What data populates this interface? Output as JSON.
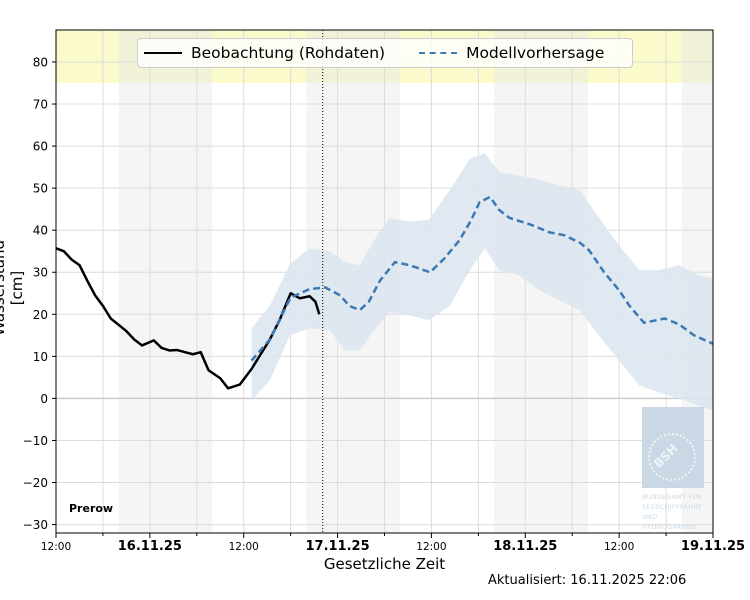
{
  "chart_data": {
    "type": "line",
    "xlabel": "Gesetzliche Zeit",
    "ylabel": "Wasserstand [cm]",
    "xlim": [
      "2025-11-15T12:00",
      "2025-11-19T00:00"
    ],
    "ylim": [
      -32,
      87.6
    ],
    "yticks": [
      -30,
      -20,
      -10,
      0,
      10,
      20,
      30,
      40,
      50,
      60,
      70,
      80
    ],
    "ytick_labels": [
      "−30",
      "−20",
      "−10",
      "0",
      "10",
      "20",
      "30",
      "40",
      "50",
      "60",
      "70",
      "80"
    ],
    "xticks": [
      {
        "t": "2025-11-15T12:00",
        "label": "12:00",
        "bold": false
      },
      {
        "t": "2025-11-16T00:00",
        "label": "16.11.25",
        "bold": true
      },
      {
        "t": "2025-11-16T12:00",
        "label": "12:00",
        "bold": false
      },
      {
        "t": "2025-11-17T00:00",
        "label": "17.11.25",
        "bold": true
      },
      {
        "t": "2025-11-17T12:00",
        "label": "12:00",
        "bold": false
      },
      {
        "t": "2025-11-18T00:00",
        "label": "18.11.25",
        "bold": true
      },
      {
        "t": "2025-11-18T12:00",
        "label": "12:00",
        "bold": false
      },
      {
        "t": "2025-11-19T00:00",
        "label": "19.11.25",
        "bold": true
      }
    ],
    "grid": true,
    "legend_position": "top-center",
    "warning_band": {
      "from": 75,
      "color": "#fafacb"
    },
    "night_periods": [
      [
        "2025-11-15T20:00",
        "2025-11-16T08:00"
      ],
      [
        "2025-11-16T20:00",
        "2025-11-17T08:00"
      ],
      [
        "2025-11-17T20:00",
        "2025-11-18T08:00"
      ],
      [
        "2025-11-18T20:00",
        "2025-11-19T00:00"
      ]
    ],
    "now_marker": "2025-11-16T22:06",
    "series": [
      {
        "name": "Beobachtung (Rohdaten)",
        "color": "#000000",
        "style": "solid",
        "points": [
          [
            "2025-11-15T12:00",
            35.7
          ],
          [
            "2025-11-15T13:00",
            35
          ],
          [
            "2025-11-15T14:00",
            33
          ],
          [
            "2025-11-15T15:00",
            31.7
          ],
          [
            "2025-11-15T16:00",
            28
          ],
          [
            "2025-11-15T17:00",
            24.5
          ],
          [
            "2025-11-15T18:00",
            22
          ],
          [
            "2025-11-15T19:00",
            19
          ],
          [
            "2025-11-15T20:00",
            17.5
          ],
          [
            "2025-11-15T21:00",
            16
          ],
          [
            "2025-11-15T22:00",
            14
          ],
          [
            "2025-11-15T23:00",
            12.6
          ],
          [
            "2025-11-16T00:30",
            13.8
          ],
          [
            "2025-11-16T01:30",
            12
          ],
          [
            "2025-11-16T02:30",
            11.4
          ],
          [
            "2025-11-16T03:30",
            11.5
          ],
          [
            "2025-11-16T04:30",
            11
          ],
          [
            "2025-11-16T05:30",
            10.5
          ],
          [
            "2025-11-16T06:30",
            11
          ],
          [
            "2025-11-16T07:30",
            6.7
          ],
          [
            "2025-11-16T09:00",
            4.8
          ],
          [
            "2025-11-16T10:00",
            2.4
          ],
          [
            "2025-11-16T11:30",
            3.3
          ],
          [
            "2025-11-16T13:00",
            7
          ],
          [
            "2025-11-16T14:00",
            10
          ],
          [
            "2025-11-16T15:20",
            14
          ],
          [
            "2025-11-16T16:35",
            18.6
          ],
          [
            "2025-11-16T18:00",
            25
          ],
          [
            "2025-11-16T19:10",
            23.8
          ],
          [
            "2025-11-16T20:25",
            24.3
          ],
          [
            "2025-11-16T21:10",
            23
          ],
          [
            "2025-11-16T21:40",
            20
          ]
        ]
      },
      {
        "name": "Modellvorhersage",
        "color": "#3c78b4",
        "style": "dashed",
        "points": [
          [
            "2025-11-16T13:00",
            9
          ],
          [
            "2025-11-16T15:20",
            14
          ],
          [
            "2025-11-16T18:00",
            24
          ],
          [
            "2025-11-16T20:25",
            26
          ],
          [
            "2025-11-16T22:25",
            26.4
          ],
          [
            "2025-11-17T00:20",
            24.5
          ],
          [
            "2025-11-17T01:30",
            22
          ],
          [
            "2025-11-17T02:50",
            21
          ],
          [
            "2025-11-17T04:00",
            23
          ],
          [
            "2025-11-17T05:25",
            28
          ],
          [
            "2025-11-17T07:20",
            32.4
          ],
          [
            "2025-11-17T09:10",
            31.7
          ],
          [
            "2025-11-17T11:50",
            30
          ],
          [
            "2025-11-17T13:40",
            33.3
          ],
          [
            "2025-11-17T15:35",
            37.6
          ],
          [
            "2025-11-17T17:05",
            42.4
          ],
          [
            "2025-11-17T18:10",
            46.7
          ],
          [
            "2025-11-17T19:30",
            47.9
          ],
          [
            "2025-11-17T20:40",
            44.8
          ],
          [
            "2025-11-17T22:00",
            42.9
          ],
          [
            "2025-11-18T00:35",
            41.4
          ],
          [
            "2025-11-18T03:05",
            39.5
          ],
          [
            "2025-11-18T05:00",
            38.8
          ],
          [
            "2025-11-18T07:00",
            37
          ],
          [
            "2025-11-18T08:10",
            35.2
          ],
          [
            "2025-11-18T10:05",
            30
          ],
          [
            "2025-11-18T12:00",
            25.7
          ],
          [
            "2025-11-18T13:20",
            22
          ],
          [
            "2025-11-18T15:10",
            18
          ],
          [
            "2025-11-18T17:50",
            19
          ],
          [
            "2025-11-18T19:40",
            17.6
          ],
          [
            "2025-11-18T21:35",
            15
          ],
          [
            "2025-11-19T00:00",
            13
          ]
        ],
        "band": {
          "color": "#dae5ef",
          "points": [
            [
              "2025-11-16T13:00",
              -0.5,
              16.7
            ],
            [
              "2025-11-16T15:20",
              4.3,
              22
            ],
            [
              "2025-11-16T17:55",
              15,
              32
            ],
            [
              "2025-11-16T20:25",
              16.7,
              35.7
            ],
            [
              "2025-11-16T23:00",
              16.2,
              35
            ],
            [
              "2025-11-17T00:55",
              11.4,
              32.4
            ],
            [
              "2025-11-17T02:50",
              11.4,
              31.7
            ],
            [
              "2025-11-17T04:40",
              16.2,
              37.6
            ],
            [
              "2025-11-17T06:35",
              20.5,
              42.9
            ],
            [
              "2025-11-17T09:10",
              19.8,
              42
            ],
            [
              "2025-11-17T11:40",
              18.6,
              42.5
            ],
            [
              "2025-11-17T14:20",
              22,
              49.5
            ],
            [
              "2025-11-17T16:55",
              30.5,
              57
            ],
            [
              "2025-11-17T18:50",
              35.7,
              58.3
            ],
            [
              "2025-11-17T20:40",
              30.5,
              53.8
            ],
            [
              "2025-11-17T23:10",
              29.3,
              53
            ],
            [
              "2025-11-18T01:50",
              25.7,
              52
            ],
            [
              "2025-11-18T04:20",
              23.3,
              50.7
            ],
            [
              "2025-11-18T06:55",
              21,
              49.5
            ],
            [
              "2025-11-18T09:25",
              15,
              43
            ],
            [
              "2025-11-18T12:00",
              9,
              36.4
            ],
            [
              "2025-11-18T14:35",
              3.1,
              30.5
            ],
            [
              "2025-11-18T17:05",
              1.4,
              30.5
            ],
            [
              "2025-11-18T19:40",
              0,
              31.7
            ],
            [
              "2025-11-18T22:10",
              -1.7,
              29.3
            ],
            [
              "2025-11-19T00:00",
              -2.9,
              28.6
            ]
          ]
        }
      }
    ]
  },
  "station": "Prerow",
  "updated": "Aktualisiert: 16.11.2025 22:06",
  "logo": {
    "text": "BSH",
    "subtitle": [
      "BUNDESAMT FÜR",
      "SEESCHIFFFAHRT",
      "UND",
      "HYDROGRAPHIE"
    ]
  }
}
